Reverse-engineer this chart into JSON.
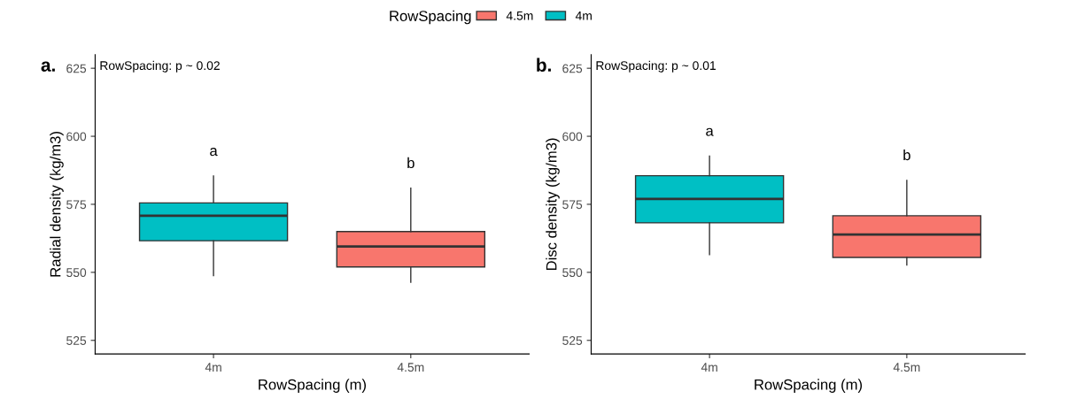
{
  "chart_data": [
    {
      "type": "box",
      "categories": [
        "4m",
        "4.5m"
      ],
      "xlabel": "RowSpacing (m)",
      "ylabel": "Radial density (kg/m3)",
      "legend_title": "RowSpacing",
      "legend": "top",
      "ylim": [
        520,
        630
      ],
      "yticks": [
        525,
        550,
        575,
        600,
        625
      ],
      "grid": false,
      "series": [
        {
          "name": "4.5m",
          "color": "#f8766d",
          "boxes": [
            null,
            {
              "low": 546.4,
              "q1": 552.0,
              "median": 559.5,
              "q3": 565.0,
              "high": 580.9
            }
          ]
        },
        {
          "name": "4m",
          "color": "#00bfc4",
          "boxes": [
            {
              "low": 548.8,
              "q1": 561.6,
              "median": 570.8,
              "q3": 575.5,
              "high": 585.4
            },
            null
          ]
        }
      ],
      "annotations": [
        "a.",
        "RowSpacing: p ~ 0.02",
        "a",
        "b"
      ]
    },
    {
      "type": "box",
      "categories": [
        "4m",
        "4.5m"
      ],
      "xlabel": "RowSpacing (m)",
      "ylabel": "Disc density (kg/m3)",
      "ylim": [
        520,
        630
      ],
      "yticks": [
        525,
        550,
        575,
        600,
        625
      ],
      "grid": false,
      "series": [
        {
          "color": "#f8766d",
          "boxes": [
            null,
            {
              "low": 552.7,
              "q1": 555.5,
              "median": 563.9,
              "q3": 570.8,
              "high": 583.8
            }
          ]
        },
        {
          "color": "#00bfc4",
          "boxes": [
            {
              "low": 556.5,
              "q1": 568.2,
              "median": 577.0,
              "q3": 585.5,
              "high": 592.7
            },
            null
          ]
        }
      ],
      "annotations": [
        "b.",
        "RowSpacing: p ~ 0.01",
        "a",
        "b"
      ]
    }
  ]
}
